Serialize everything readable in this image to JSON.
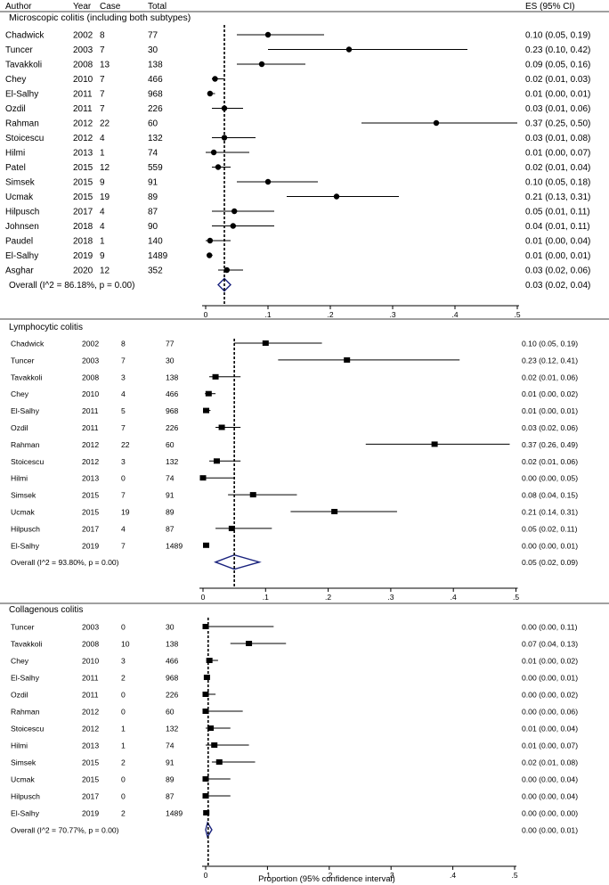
{
  "header": {
    "author": "Author",
    "year": "Year",
    "case": "Case",
    "total": "Total",
    "es": "ES (95% CI)"
  },
  "x_axis": {
    "label": "Proportion (95% confidence interval)",
    "ticks": [
      {
        "value": 0,
        "label": "0"
      },
      {
        "value": 0.1,
        "label": ".1"
      },
      {
        "value": 0.2,
        "label": ".2"
      },
      {
        "value": 0.3,
        "label": ".3"
      },
      {
        "value": 0.4,
        "label": ".4"
      },
      {
        "value": 0.5,
        "label": ".5"
      }
    ]
  },
  "colors": {
    "text": "#000000",
    "diamond": "#1a237e",
    "line": "#000000"
  },
  "chart_data": [
    {
      "type": "forest",
      "title": "Microscopic colitis (including both subtypes)",
      "marker": "circle",
      "pooled_line": 0.03,
      "rows": [
        {
          "author": "Chadwick",
          "year": "2002",
          "case": "8",
          "total": "77",
          "es": 0.1,
          "lo": 0.05,
          "hi": 0.19,
          "label": "0.10 (0.05, 0.19)"
        },
        {
          "author": "Tuncer",
          "year": "2003",
          "case": "7",
          "total": "30",
          "es": 0.23,
          "lo": 0.1,
          "hi": 0.42,
          "label": "0.23 (0.10, 0.42)"
        },
        {
          "author": "Tavakkoli",
          "year": "2008",
          "case": "13",
          "total": "138",
          "es": 0.09,
          "lo": 0.05,
          "hi": 0.16,
          "label": "0.09 (0.05, 0.16)"
        },
        {
          "author": "Chey",
          "year": "2010",
          "case": "7",
          "total": "466",
          "es": 0.015,
          "lo": 0.01,
          "hi": 0.03,
          "label": "0.02 (0.01, 0.03)"
        },
        {
          "author": "El-Salhy",
          "year": "2011",
          "case": "7",
          "total": "968",
          "es": 0.007,
          "lo": 0.003,
          "hi": 0.015,
          "label": "0.01 (0.00, 0.01)"
        },
        {
          "author": "Ozdil",
          "year": "2011",
          "case": "7",
          "total": "226",
          "es": 0.03,
          "lo": 0.01,
          "hi": 0.06,
          "label": "0.03 (0.01, 0.06)"
        },
        {
          "author": "Rahman",
          "year": "2012",
          "case": "22",
          "total": "60",
          "es": 0.37,
          "lo": 0.25,
          "hi": 0.5,
          "label": "0.37 (0.25, 0.50)"
        },
        {
          "author": "Stoicescu",
          "year": "2012",
          "case": "4",
          "total": "132",
          "es": 0.03,
          "lo": 0.01,
          "hi": 0.08,
          "label": "0.03 (0.01, 0.08)"
        },
        {
          "author": "Hilmi",
          "year": "2013",
          "case": "1",
          "total": "74",
          "es": 0.013,
          "lo": 0.0,
          "hi": 0.07,
          "label": "0.01 (0.00, 0.07)"
        },
        {
          "author": "Patel",
          "year": "2015",
          "case": "12",
          "total": "559",
          "es": 0.02,
          "lo": 0.01,
          "hi": 0.04,
          "label": "0.02 (0.01, 0.04)"
        },
        {
          "author": "Simsek",
          "year": "2015",
          "case": "9",
          "total": "91",
          "es": 0.1,
          "lo": 0.05,
          "hi": 0.18,
          "label": "0.10 (0.05, 0.18)"
        },
        {
          "author": "Ucmak",
          "year": "2015",
          "case": "19",
          "total": "89",
          "es": 0.21,
          "lo": 0.13,
          "hi": 0.31,
          "label": "0.21 (0.13, 0.31)"
        },
        {
          "author": "Hilpusch",
          "year": "2017",
          "case": "4",
          "total": "87",
          "es": 0.046,
          "lo": 0.01,
          "hi": 0.11,
          "label": "0.05 (0.01, 0.11)"
        },
        {
          "author": "Johnsen",
          "year": "2018",
          "case": "4",
          "total": "90",
          "es": 0.044,
          "lo": 0.01,
          "hi": 0.11,
          "label": "0.04 (0.01, 0.11)"
        },
        {
          "author": "Paudel",
          "year": "2018",
          "case": "1",
          "total": "140",
          "es": 0.007,
          "lo": 0.0,
          "hi": 0.04,
          "label": "0.01 (0.00, 0.04)"
        },
        {
          "author": "El-Salhy",
          "year": "2019",
          "case": "9",
          "total": "1489",
          "es": 0.006,
          "lo": 0.003,
          "hi": 0.011,
          "label": "0.01 (0.00, 0.01)"
        },
        {
          "author": "Asghar",
          "year": "2020",
          "case": "12",
          "total": "352",
          "es": 0.034,
          "lo": 0.02,
          "hi": 0.06,
          "label": "0.03 (0.02, 0.06)"
        }
      ],
      "overall": {
        "text": "Overall  (I^2 = 86.18%, p = 0.00)",
        "es": 0.03,
        "lo": 0.02,
        "hi": 0.04,
        "label": "0.03 (0.02, 0.04)"
      }
    },
    {
      "type": "forest",
      "title": "Lymphocytic colitis",
      "marker": "square",
      "pooled_line": 0.05,
      "rows": [
        {
          "author": "Chadwick",
          "year": "2002",
          "case": "8",
          "total": "77",
          "es": 0.1,
          "lo": 0.05,
          "hi": 0.19,
          "label": "0.10 (0.05, 0.19)"
        },
        {
          "author": "Tuncer",
          "year": "2003",
          "case": "7",
          "total": "30",
          "es": 0.23,
          "lo": 0.12,
          "hi": 0.41,
          "label": "0.23 (0.12, 0.41)"
        },
        {
          "author": "Tavakkoli",
          "year": "2008",
          "case": "3",
          "total": "138",
          "es": 0.02,
          "lo": 0.01,
          "hi": 0.06,
          "label": "0.02 (0.01, 0.06)"
        },
        {
          "author": "Chey",
          "year": "2010",
          "case": "4",
          "total": "466",
          "es": 0.009,
          "lo": 0.003,
          "hi": 0.02,
          "label": "0.01 (0.00, 0.02)"
        },
        {
          "author": "El-Salhy",
          "year": "2011",
          "case": "5",
          "total": "968",
          "es": 0.005,
          "lo": 0.002,
          "hi": 0.012,
          "label": "0.01 (0.00, 0.01)"
        },
        {
          "author": "Ozdil",
          "year": "2011",
          "case": "7",
          "total": "226",
          "es": 0.03,
          "lo": 0.02,
          "hi": 0.06,
          "label": "0.03 (0.02, 0.06)"
        },
        {
          "author": "Rahman",
          "year": "2012",
          "case": "22",
          "total": "60",
          "es": 0.37,
          "lo": 0.26,
          "hi": 0.49,
          "label": "0.37 (0.26, 0.49)"
        },
        {
          "author": "Stoicescu",
          "year": "2012",
          "case": "3",
          "total": "132",
          "es": 0.022,
          "lo": 0.01,
          "hi": 0.06,
          "label": "0.02 (0.01, 0.06)"
        },
        {
          "author": "Hilmi",
          "year": "2013",
          "case": "0",
          "total": "74",
          "es": 0.0,
          "lo": 0.0,
          "hi": 0.05,
          "label": "0.00 (0.00, 0.05)"
        },
        {
          "author": "Simsek",
          "year": "2015",
          "case": "7",
          "total": "91",
          "es": 0.08,
          "lo": 0.04,
          "hi": 0.15,
          "label": "0.08 (0.04, 0.15)"
        },
        {
          "author": "Ucmak",
          "year": "2015",
          "case": "19",
          "total": "89",
          "es": 0.21,
          "lo": 0.14,
          "hi": 0.31,
          "label": "0.21 (0.14, 0.31)"
        },
        {
          "author": "Hilpusch",
          "year": "2017",
          "case": "4",
          "total": "87",
          "es": 0.046,
          "lo": 0.02,
          "hi": 0.11,
          "label": "0.05 (0.02, 0.11)"
        },
        {
          "author": "El-Salhy",
          "year": "2019",
          "case": "7",
          "total": "1489",
          "es": 0.005,
          "lo": 0.0,
          "hi": 0.01,
          "label": "0.00 (0.00, 0.01)"
        }
      ],
      "overall": {
        "text": "Overall  (I^2 = 93.80%, p = 0.00)",
        "es": 0.05,
        "lo": 0.02,
        "hi": 0.09,
        "label": "0.05 (0.02, 0.09)"
      }
    },
    {
      "type": "forest",
      "title": "Collagenous colitis",
      "marker": "square",
      "pooled_line": 0.004,
      "rows": [
        {
          "author": "Tuncer",
          "year": "2003",
          "case": "0",
          "total": "30",
          "es": 0.0,
          "lo": 0.0,
          "hi": 0.11,
          "label": "0.00 (0.00, 0.11)"
        },
        {
          "author": "Tavakkoli",
          "year": "2008",
          "case": "10",
          "total": "138",
          "es": 0.07,
          "lo": 0.04,
          "hi": 0.13,
          "label": "0.07 (0.04, 0.13)"
        },
        {
          "author": "Chey",
          "year": "2010",
          "case": "3",
          "total": "466",
          "es": 0.006,
          "lo": 0.001,
          "hi": 0.02,
          "label": "0.01 (0.00, 0.02)"
        },
        {
          "author": "El-Salhy",
          "year": "2011",
          "case": "2",
          "total": "968",
          "es": 0.002,
          "lo": 0.0,
          "hi": 0.007,
          "label": "0.00 (0.00, 0.01)"
        },
        {
          "author": "Ozdil",
          "year": "2011",
          "case": "0",
          "total": "226",
          "es": 0.0,
          "lo": 0.0,
          "hi": 0.016,
          "label": "0.00 (0.00, 0.02)"
        },
        {
          "author": "Rahman",
          "year": "2012",
          "case": "0",
          "total": "60",
          "es": 0.0,
          "lo": 0.0,
          "hi": 0.06,
          "label": "0.00 (0.00, 0.06)"
        },
        {
          "author": "Stoicescu",
          "year": "2012",
          "case": "1",
          "total": "132",
          "es": 0.008,
          "lo": 0.0,
          "hi": 0.04,
          "label": "0.01 (0.00, 0.04)"
        },
        {
          "author": "Hilmi",
          "year": "2013",
          "case": "1",
          "total": "74",
          "es": 0.014,
          "lo": 0.0,
          "hi": 0.07,
          "label": "0.01 (0.00, 0.07)"
        },
        {
          "author": "Simsek",
          "year": "2015",
          "case": "2",
          "total": "91",
          "es": 0.022,
          "lo": 0.01,
          "hi": 0.08,
          "label": "0.02 (0.01, 0.08)"
        },
        {
          "author": "Ucmak",
          "year": "2015",
          "case": "0",
          "total": "89",
          "es": 0.0,
          "lo": 0.0,
          "hi": 0.04,
          "label": "0.00 (0.00, 0.04)"
        },
        {
          "author": "Hilpusch",
          "year": "2017",
          "case": "0",
          "total": "87",
          "es": 0.0,
          "lo": 0.0,
          "hi": 0.04,
          "label": "0.00 (0.00, 0.04)"
        },
        {
          "author": "El-Salhy",
          "year": "2019",
          "case": "2",
          "total": "1489",
          "es": 0.001,
          "lo": 0.0,
          "hi": 0.003,
          "label": "0.00 (0.00, 0.00)"
        }
      ],
      "overall": {
        "text": "Overall  (I^2 = 70.77%, p = 0.00)",
        "es": 0.003,
        "lo": 0.0,
        "hi": 0.01,
        "label": "0.00 (0.00, 0.01)"
      }
    }
  ]
}
